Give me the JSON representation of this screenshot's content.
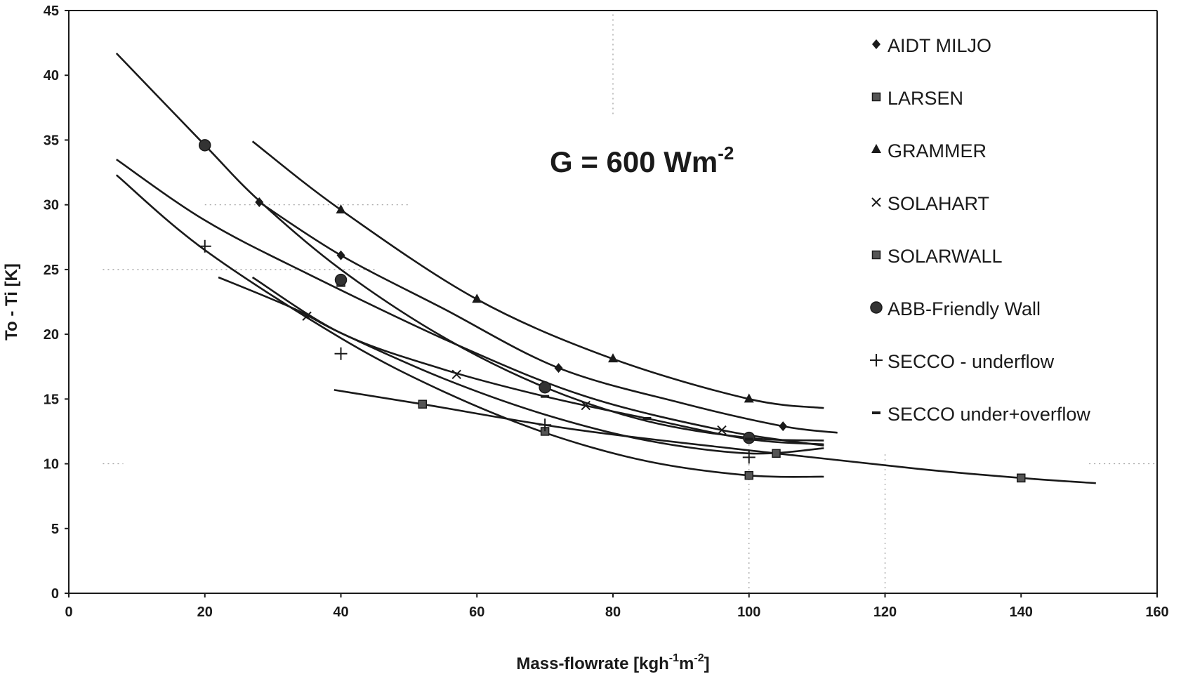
{
  "chart_data": {
    "type": "scatter",
    "xlabel": "Mass-flowrate [kgh",
    "xlabel_sup1": "-1",
    "xlabel_mid": "m",
    "xlabel_sup2": "-2",
    "xlabel_end": "]",
    "ylabel": "To - Ti [K]",
    "xlim": [
      0,
      160
    ],
    "ylim": [
      0,
      45
    ],
    "x_ticks": [
      "0",
      "20",
      "40",
      "60",
      "80",
      "100",
      "120",
      "140",
      "160"
    ],
    "y_ticks": [
      "0",
      "5",
      "10",
      "15",
      "20",
      "25",
      "30",
      "35",
      "40",
      "45"
    ],
    "annotation": {
      "text": "G = 600 Wm",
      "sup": "-2"
    },
    "legend_position": "top-right",
    "series": [
      {
        "name": "AIDT MILJO",
        "marker": "diamond",
        "points": [
          [
            28,
            30.2
          ],
          [
            40,
            26.1
          ],
          [
            72,
            17.4
          ],
          [
            105,
            12.9
          ]
        ],
        "curve": [
          [
            28,
            30.2
          ],
          [
            40,
            26.1
          ],
          [
            55,
            22
          ],
          [
            72,
            17.4
          ],
          [
            90,
            14.7
          ],
          [
            105,
            12.9
          ],
          [
            113,
            12.4
          ]
        ]
      },
      {
        "name": "LARSEN",
        "marker": "square",
        "points": [
          [
            40,
            24
          ],
          [
            70,
            12.5
          ],
          [
            100,
            9.1
          ],
          [
            140,
            8.9
          ]
        ],
        "curve": [
          [
            7,
            32.3
          ],
          [
            20,
            26.5
          ],
          [
            40,
            19.7
          ],
          [
            55,
            15.6
          ],
          [
            70,
            12.4
          ],
          [
            85,
            10.2
          ],
          [
            100,
            9.1
          ],
          [
            111,
            9.0
          ]
        ]
      },
      {
        "name": "GRAMMER",
        "marker": "triangle",
        "points": [
          [
            40,
            29.6
          ],
          [
            60,
            22.7
          ],
          [
            80,
            18.1
          ],
          [
            100,
            15.0
          ]
        ],
        "curve": [
          [
            27,
            34.9
          ],
          [
            40,
            29.6
          ],
          [
            60,
            22.7
          ],
          [
            80,
            18.1
          ],
          [
            100,
            15.0
          ],
          [
            111,
            14.3
          ]
        ]
      },
      {
        "name": "SOLAHART",
        "marker": "x",
        "points": [
          [
            35,
            21.4
          ],
          [
            57,
            16.9
          ],
          [
            76,
            14.5
          ],
          [
            96,
            12.6
          ]
        ],
        "curve": [
          [
            7,
            33.5
          ],
          [
            20,
            28.8
          ],
          [
            35,
            24.7
          ],
          [
            57,
            19.2
          ],
          [
            76,
            15.2
          ],
          [
            96,
            12.6
          ],
          [
            111,
            11.4
          ]
        ]
      },
      {
        "name": "SOLARWALL",
        "marker": "square",
        "points": [
          [
            52,
            14.6
          ],
          [
            104,
            10.8
          ],
          [
            140,
            8.9
          ]
        ],
        "curve": [
          [
            39,
            15.7
          ],
          [
            52,
            14.6
          ],
          [
            75,
            12.6
          ],
          [
            104,
            10.8
          ],
          [
            125,
            9.6
          ],
          [
            140,
            8.9
          ],
          [
            151,
            8.5
          ]
        ]
      },
      {
        "name": "ABB-Friendly Wall",
        "marker": "circle",
        "points": [
          [
            20,
            34.6
          ],
          [
            40,
            24.2
          ],
          [
            70,
            15.9
          ],
          [
            100,
            12.0
          ]
        ],
        "curve": [
          [
            7,
            41.7
          ],
          [
            20,
            34.6
          ],
          [
            28,
            30.3
          ],
          [
            40,
            25.0
          ],
          [
            55,
            19.8
          ],
          [
            70,
            15.9
          ],
          [
            85,
            13.3
          ],
          [
            100,
            12.0
          ],
          [
            111,
            11.8
          ]
        ]
      },
      {
        "name": "SECCO - underflow",
        "marker": "plus",
        "points": [
          [
            20,
            26.8
          ],
          [
            40,
            18.5
          ],
          [
            70,
            13.0
          ],
          [
            100,
            10.5
          ]
        ],
        "curve": [
          [
            22,
            24.4
          ],
          [
            33,
            22.0
          ],
          [
            40,
            20.1
          ],
          [
            55,
            16.6
          ],
          [
            70,
            13.8
          ],
          [
            85,
            11.8
          ],
          [
            100,
            10.8
          ],
          [
            111,
            11.2
          ]
        ]
      },
      {
        "name": "SECCO under+overflow",
        "marker": "dash",
        "points": [
          [
            70,
            15.2
          ],
          [
            85,
            13.5
          ],
          [
            100,
            11.9
          ]
        ],
        "curve": [
          [
            27,
            24.4
          ],
          [
            40,
            20.1
          ],
          [
            55,
            17.3
          ],
          [
            70,
            15.2
          ],
          [
            85,
            13.5
          ],
          [
            100,
            11.9
          ],
          [
            111,
            11.5
          ]
        ]
      }
    ]
  }
}
